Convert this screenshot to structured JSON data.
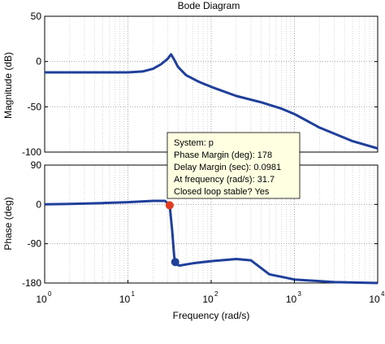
{
  "chart_data": {
    "type": "line",
    "title": "Bode Diagram",
    "xlabel": "Frequency  (rad/s)",
    "x_scale": "log",
    "xlim": [
      1,
      10000
    ],
    "x_ticks": [
      {
        "value": 1,
        "base": "10",
        "exp": "0"
      },
      {
        "value": 10,
        "base": "10",
        "exp": "1"
      },
      {
        "value": 100,
        "base": "10",
        "exp": "2"
      },
      {
        "value": 1000,
        "base": "10",
        "exp": "3"
      },
      {
        "value": 10000,
        "base": "10",
        "exp": "4"
      }
    ],
    "grid": true,
    "line_color": "#1f3f9b",
    "panels": [
      {
        "name": "magnitude",
        "ylabel": "Magnitude (dB)",
        "ylim": [
          -100,
          50
        ],
        "y_ticks": [
          50,
          0,
          -50,
          -100
        ],
        "points": [
          [
            1,
            -12
          ],
          [
            5,
            -12
          ],
          [
            10,
            -12
          ],
          [
            15,
            -11
          ],
          [
            20,
            -8
          ],
          [
            25,
            -3
          ],
          [
            30,
            3
          ],
          [
            33,
            8
          ],
          [
            36,
            2
          ],
          [
            40,
            -6
          ],
          [
            50,
            -15
          ],
          [
            70,
            -22
          ],
          [
            100,
            -28
          ],
          [
            200,
            -38
          ],
          [
            400,
            -45
          ],
          [
            700,
            -52
          ],
          [
            1000,
            -58
          ],
          [
            2000,
            -73
          ],
          [
            5000,
            -88
          ],
          [
            10000,
            -96
          ]
        ]
      },
      {
        "name": "phase",
        "ylabel": "Phase (deg)",
        "ylim": [
          -180,
          90
        ],
        "y_ticks": [
          90,
          0,
          -90,
          -180
        ],
        "points": [
          [
            1,
            0
          ],
          [
            2,
            1
          ],
          [
            5,
            3
          ],
          [
            10,
            5
          ],
          [
            20,
            8
          ],
          [
            28,
            8
          ],
          [
            31.7,
            -2
          ],
          [
            34,
            -60
          ],
          [
            36,
            -120
          ],
          [
            38,
            -138
          ],
          [
            42,
            -140
          ],
          [
            60,
            -135
          ],
          [
            100,
            -130
          ],
          [
            200,
            -125
          ],
          [
            300,
            -128
          ],
          [
            500,
            -160
          ],
          [
            1000,
            -172
          ],
          [
            3000,
            -178
          ],
          [
            10000,
            -180
          ]
        ]
      }
    ],
    "markers": [
      {
        "panel": "phase",
        "x": 31.7,
        "y": -2,
        "color": "#e03c1e"
      },
      {
        "panel": "phase",
        "x": 37,
        "y": -132,
        "color": "#1f3f9b"
      }
    ],
    "annotation": {
      "lines": [
        "System: p",
        "Phase Margin (deg): 178",
        "Delay Margin (sec): 0.0981",
        "At frequency (rad/s): 31.7",
        "Closed loop stable? Yes"
      ],
      "background": "#ffffe1"
    }
  }
}
